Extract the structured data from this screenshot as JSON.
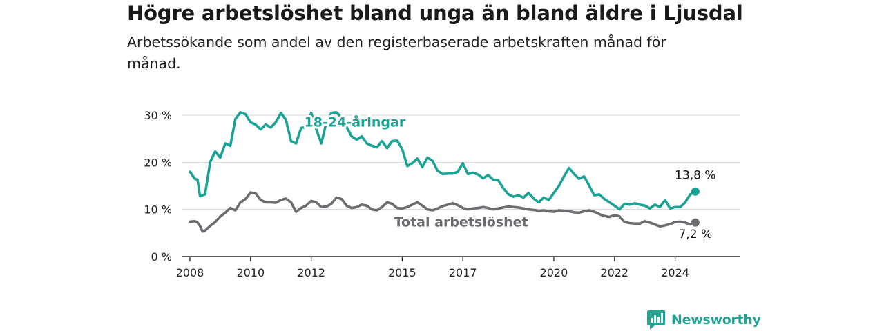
{
  "header": {
    "title": "Högre arbetslöshet bland unga än bland äldre i Ljusdal",
    "subtitle": "Arbetssökande som andel av den registerbaserade arbetskraften månad för månad."
  },
  "brand": {
    "name": "Newsworthy",
    "color": "#24a394"
  },
  "chart_data": {
    "type": "line",
    "title": "Högre arbetslöshet bland unga än bland äldre i Ljusdal",
    "subtitle": "Arbetssökande som andel av den registerbaserade arbetskraften månad för månad.",
    "xlabel": "",
    "ylabel": "",
    "x_ticks": [
      "2008",
      "2010",
      "2012",
      "2015",
      "2017",
      "2020",
      "2022",
      "2024"
    ],
    "y_ticks": [
      "0 %",
      "10 %",
      "20 %",
      "30 %"
    ],
    "ylim": [
      0,
      30
    ],
    "grid": "horizontal",
    "series": [
      {
        "name": "18-24-åringar",
        "color": "#1aa394",
        "end_label": "13,8 %",
        "points": [
          [
            "2008-01",
            18.0
          ],
          [
            "2008-03",
            16.5
          ],
          [
            "2008-04",
            16.3
          ],
          [
            "2008-05",
            12.8
          ],
          [
            "2008-07",
            13.2
          ],
          [
            "2008-09",
            20.0
          ],
          [
            "2008-11",
            22.3
          ],
          [
            "2009-01",
            21.0
          ],
          [
            "2009-03",
            24.0
          ],
          [
            "2009-05",
            23.5
          ],
          [
            "2009-07",
            29.2
          ],
          [
            "2009-09",
            30.6
          ],
          [
            "2009-11",
            30.2
          ],
          [
            "2010-01",
            28.5
          ],
          [
            "2010-03",
            28.0
          ],
          [
            "2010-05",
            27.0
          ],
          [
            "2010-07",
            28.0
          ],
          [
            "2010-09",
            27.4
          ],
          [
            "2010-11",
            28.5
          ],
          [
            "2011-01",
            30.5
          ],
          [
            "2011-03",
            29.0
          ],
          [
            "2011-05",
            24.5
          ],
          [
            "2011-07",
            24.0
          ],
          [
            "2011-09",
            27.3
          ],
          [
            "2011-11",
            27.5
          ],
          [
            "2012-01",
            30.5
          ],
          [
            "2012-03",
            27.0
          ],
          [
            "2012-05",
            24.0
          ],
          [
            "2012-07",
            28.5
          ],
          [
            "2012-09",
            30.5
          ],
          [
            "2012-11",
            30.6
          ],
          [
            "2013-01",
            29.5
          ],
          [
            "2013-03",
            27.5
          ],
          [
            "2013-05",
            25.5
          ],
          [
            "2013-07",
            24.8
          ],
          [
            "2013-09",
            25.5
          ],
          [
            "2013-11",
            24.0
          ],
          [
            "2014-01",
            23.5
          ],
          [
            "2014-03",
            23.2
          ],
          [
            "2014-05",
            24.5
          ],
          [
            "2014-07",
            23.0
          ],
          [
            "2014-09",
            24.5
          ],
          [
            "2014-11",
            24.6
          ],
          [
            "2015-01",
            22.8
          ],
          [
            "2015-03",
            19.2
          ],
          [
            "2015-05",
            19.8
          ],
          [
            "2015-07",
            20.8
          ],
          [
            "2015-09",
            19.0
          ],
          [
            "2015-11",
            21.0
          ],
          [
            "2016-01",
            20.3
          ],
          [
            "2016-03",
            18.2
          ],
          [
            "2016-05",
            17.5
          ],
          [
            "2016-07",
            17.6
          ],
          [
            "2016-09",
            17.6
          ],
          [
            "2016-11",
            18.0
          ],
          [
            "2017-01",
            19.8
          ],
          [
            "2017-03",
            17.5
          ],
          [
            "2017-05",
            17.8
          ],
          [
            "2017-07",
            17.4
          ],
          [
            "2017-09",
            16.6
          ],
          [
            "2017-11",
            17.3
          ],
          [
            "2018-01",
            16.3
          ],
          [
            "2018-03",
            16.2
          ],
          [
            "2018-05",
            14.5
          ],
          [
            "2018-07",
            13.2
          ],
          [
            "2018-09",
            12.7
          ],
          [
            "2018-11",
            13.0
          ],
          [
            "2019-01",
            12.5
          ],
          [
            "2019-03",
            13.5
          ],
          [
            "2019-05",
            12.3
          ],
          [
            "2019-07",
            11.5
          ],
          [
            "2019-09",
            12.5
          ],
          [
            "2019-11",
            12.0
          ],
          [
            "2020-01",
            13.5
          ],
          [
            "2020-03",
            15.0
          ],
          [
            "2020-05",
            17.0
          ],
          [
            "2020-07",
            18.8
          ],
          [
            "2020-09",
            17.5
          ],
          [
            "2020-11",
            16.5
          ],
          [
            "2021-01",
            17.0
          ],
          [
            "2021-03",
            15.0
          ],
          [
            "2021-05",
            13.0
          ],
          [
            "2021-07",
            13.2
          ],
          [
            "2021-09",
            12.2
          ],
          [
            "2021-11",
            11.5
          ],
          [
            "2022-01",
            10.8
          ],
          [
            "2022-03",
            10.0
          ],
          [
            "2022-05",
            11.2
          ],
          [
            "2022-07",
            11.0
          ],
          [
            "2022-09",
            11.3
          ],
          [
            "2022-11",
            11.0
          ],
          [
            "2023-01",
            10.8
          ],
          [
            "2023-03",
            10.2
          ],
          [
            "2023-05",
            11.0
          ],
          [
            "2023-07",
            10.5
          ],
          [
            "2023-09",
            12.0
          ],
          [
            "2023-11",
            10.2
          ],
          [
            "2024-01",
            10.5
          ],
          [
            "2024-03",
            10.5
          ],
          [
            "2024-05",
            11.5
          ],
          [
            "2024-07",
            13.2
          ],
          [
            "2024-09",
            13.8
          ]
        ]
      },
      {
        "name": "Total arbetslöshet",
        "color": "#6b6b70",
        "end_label": "7,2 %",
        "points": [
          [
            "2008-01",
            7.4
          ],
          [
            "2008-03",
            7.5
          ],
          [
            "2008-04",
            7.2
          ],
          [
            "2008-05",
            6.5
          ],
          [
            "2008-06",
            5.3
          ],
          [
            "2008-07",
            5.5
          ],
          [
            "2008-09",
            6.5
          ],
          [
            "2008-11",
            7.3
          ],
          [
            "2009-01",
            8.5
          ],
          [
            "2009-03",
            9.3
          ],
          [
            "2009-05",
            10.3
          ],
          [
            "2009-07",
            9.8
          ],
          [
            "2009-09",
            11.5
          ],
          [
            "2009-11",
            12.2
          ],
          [
            "2010-01",
            13.6
          ],
          [
            "2010-03",
            13.4
          ],
          [
            "2010-05",
            12.0
          ],
          [
            "2010-07",
            11.5
          ],
          [
            "2010-09",
            11.5
          ],
          [
            "2010-11",
            11.4
          ],
          [
            "2011-01",
            12.0
          ],
          [
            "2011-03",
            12.3
          ],
          [
            "2011-05",
            11.5
          ],
          [
            "2011-07",
            9.5
          ],
          [
            "2011-09",
            10.3
          ],
          [
            "2011-11",
            10.8
          ],
          [
            "2012-01",
            11.8
          ],
          [
            "2012-03",
            11.5
          ],
          [
            "2012-05",
            10.5
          ],
          [
            "2012-07",
            10.6
          ],
          [
            "2012-09",
            11.2
          ],
          [
            "2012-11",
            12.5
          ],
          [
            "2013-01",
            12.2
          ],
          [
            "2013-03",
            10.8
          ],
          [
            "2013-05",
            10.3
          ],
          [
            "2013-07",
            10.5
          ],
          [
            "2013-09",
            11.0
          ],
          [
            "2013-11",
            10.8
          ],
          [
            "2014-01",
            10.0
          ],
          [
            "2014-03",
            9.8
          ],
          [
            "2014-05",
            10.5
          ],
          [
            "2014-07",
            11.5
          ],
          [
            "2014-09",
            11.2
          ],
          [
            "2014-11",
            10.3
          ],
          [
            "2015-01",
            10.2
          ],
          [
            "2015-03",
            10.5
          ],
          [
            "2015-05",
            11.0
          ],
          [
            "2015-07",
            11.5
          ],
          [
            "2015-09",
            10.8
          ],
          [
            "2015-11",
            10.0
          ],
          [
            "2016-01",
            9.8
          ],
          [
            "2016-03",
            10.2
          ],
          [
            "2016-05",
            10.7
          ],
          [
            "2016-07",
            11.0
          ],
          [
            "2016-09",
            11.3
          ],
          [
            "2016-11",
            10.9
          ],
          [
            "2017-01",
            10.3
          ],
          [
            "2017-03",
            10.0
          ],
          [
            "2017-05",
            10.2
          ],
          [
            "2017-07",
            10.3
          ],
          [
            "2017-09",
            10.5
          ],
          [
            "2017-11",
            10.3
          ],
          [
            "2018-01",
            10.0
          ],
          [
            "2018-03",
            10.2
          ],
          [
            "2018-05",
            10.4
          ],
          [
            "2018-07",
            10.6
          ],
          [
            "2018-09",
            10.5
          ],
          [
            "2018-11",
            10.4
          ],
          [
            "2019-01",
            10.2
          ],
          [
            "2019-03",
            10.0
          ],
          [
            "2019-05",
            9.9
          ],
          [
            "2019-07",
            9.7
          ],
          [
            "2019-09",
            9.8
          ],
          [
            "2019-11",
            9.6
          ],
          [
            "2020-01",
            9.5
          ],
          [
            "2020-03",
            9.8
          ],
          [
            "2020-05",
            9.7
          ],
          [
            "2020-07",
            9.6
          ],
          [
            "2020-09",
            9.4
          ],
          [
            "2020-11",
            9.3
          ],
          [
            "2021-01",
            9.6
          ],
          [
            "2021-03",
            9.8
          ],
          [
            "2021-05",
            9.5
          ],
          [
            "2021-07",
            9.0
          ],
          [
            "2021-09",
            8.6
          ],
          [
            "2021-11",
            8.4
          ],
          [
            "2022-01",
            8.8
          ],
          [
            "2022-03",
            8.5
          ],
          [
            "2022-05",
            7.3
          ],
          [
            "2022-07",
            7.1
          ],
          [
            "2022-09",
            7.0
          ],
          [
            "2022-11",
            7.0
          ],
          [
            "2023-01",
            7.5
          ],
          [
            "2023-03",
            7.2
          ],
          [
            "2023-05",
            6.8
          ],
          [
            "2023-07",
            6.4
          ],
          [
            "2023-09",
            6.6
          ],
          [
            "2023-11",
            6.9
          ],
          [
            "2024-01",
            7.3
          ],
          [
            "2024-03",
            7.4
          ],
          [
            "2024-05",
            7.2
          ],
          [
            "2024-07",
            6.8
          ],
          [
            "2024-09",
            7.2
          ]
        ]
      }
    ]
  }
}
